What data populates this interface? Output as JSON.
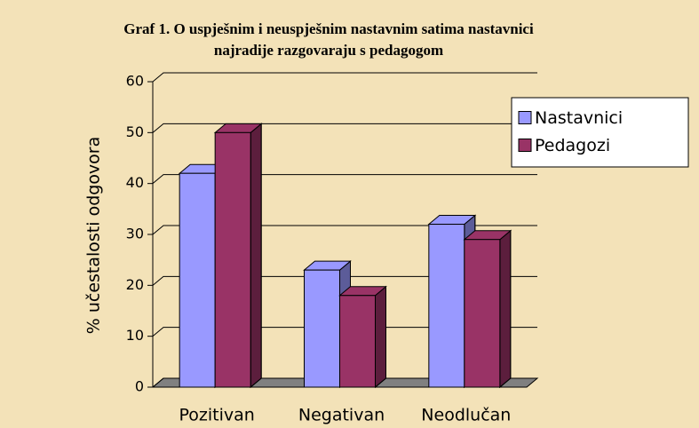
{
  "chart_data": {
    "type": "bar3d",
    "title": [
      "Graf 1. O uspješnim i neuspješnim nastavnim satima nastavnici",
      "najradije razgovaraju s pedagogom"
    ],
    "ylabel": "% učestalosti odgovora",
    "categories": [
      "Pozitivan",
      "Negativan",
      "Neodlučan"
    ],
    "series": [
      {
        "name": "Nastavnici",
        "color": "#9999ff",
        "values": [
          42,
          23,
          32
        ]
      },
      {
        "name": "Pedagozi",
        "color": "#993366",
        "values": [
          50,
          18,
          29
        ]
      }
    ],
    "ylim": [
      0,
      60
    ],
    "yticks": [
      0,
      10,
      20,
      30,
      40,
      50,
      60
    ],
    "grid": true,
    "legend": "upper right"
  }
}
